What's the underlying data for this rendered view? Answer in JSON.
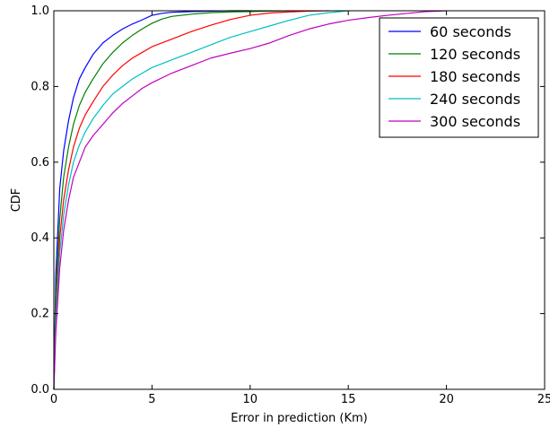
{
  "chart_data": {
    "type": "line",
    "title": "",
    "xlabel": "Error in prediction (Km)",
    "ylabel": "CDF",
    "xlim": [
      0,
      25
    ],
    "ylim": [
      0,
      1.0
    ],
    "xticks": [
      0,
      5,
      10,
      15,
      20,
      25
    ],
    "yticks": [
      0.0,
      0.2,
      0.4,
      0.6,
      0.8,
      1.0
    ],
    "xtick_labels": [
      "0",
      "5",
      "10",
      "15",
      "20",
      "25"
    ],
    "ytick_labels": [
      "0.0",
      "0.2",
      "0.4",
      "0.6",
      "0.8",
      "1.0"
    ],
    "grid": false,
    "legend_position": "top-right",
    "series": [
      {
        "name": "60 seconds",
        "color": "#0000ff",
        "x": [
          0,
          0.1,
          0.3,
          0.5,
          0.75,
          1.0,
          1.3,
          1.6,
          2.0,
          2.5,
          3.0,
          3.5,
          4.0,
          4.5,
          5.0,
          5.5,
          6.0,
          7.0,
          8.0,
          9.0,
          10.0
        ],
        "y": [
          0,
          0.3,
          0.53,
          0.63,
          0.71,
          0.77,
          0.82,
          0.85,
          0.885,
          0.915,
          0.935,
          0.952,
          0.965,
          0.976,
          0.988,
          0.993,
          0.996,
          0.998,
          0.999,
          1.0,
          1.0
        ]
      },
      {
        "name": "120 seconds",
        "color": "#008000",
        "x": [
          0,
          0.1,
          0.3,
          0.5,
          0.75,
          1.0,
          1.3,
          1.6,
          2.0,
          2.5,
          3.0,
          3.5,
          4.0,
          4.5,
          5.0,
          5.5,
          6.0,
          7.0,
          8.0,
          9.0,
          10.0,
          11.0,
          12.0
        ],
        "y": [
          0,
          0.25,
          0.45,
          0.56,
          0.64,
          0.7,
          0.75,
          0.785,
          0.82,
          0.86,
          0.89,
          0.915,
          0.935,
          0.952,
          0.967,
          0.978,
          0.985,
          0.991,
          0.995,
          0.997,
          0.998,
          0.999,
          1.0
        ]
      },
      {
        "name": "180 seconds",
        "color": "#ff0000",
        "x": [
          0,
          0.1,
          0.3,
          0.5,
          0.75,
          1.0,
          1.3,
          1.6,
          2.0,
          2.5,
          3.0,
          3.5,
          4.0,
          4.5,
          5.0,
          6.0,
          7.0,
          8.0,
          9.0,
          10.0,
          11.0,
          12.0,
          13.0,
          14.0
        ],
        "y": [
          0,
          0.2,
          0.4,
          0.5,
          0.58,
          0.64,
          0.69,
          0.725,
          0.76,
          0.8,
          0.83,
          0.855,
          0.875,
          0.89,
          0.905,
          0.925,
          0.945,
          0.962,
          0.977,
          0.988,
          0.994,
          0.997,
          0.999,
          1.0
        ]
      },
      {
        "name": "240 seconds",
        "color": "#00bfbf",
        "x": [
          0,
          0.1,
          0.3,
          0.5,
          0.75,
          1.0,
          1.3,
          1.6,
          2.0,
          2.5,
          3.0,
          3.5,
          4.0,
          4.5,
          5.0,
          6.0,
          7.0,
          8.0,
          9.0,
          10.0,
          11.0,
          12.0,
          13.0,
          14.0,
          15.0
        ],
        "y": [
          0,
          0.18,
          0.36,
          0.46,
          0.54,
          0.6,
          0.645,
          0.68,
          0.715,
          0.75,
          0.78,
          0.8,
          0.82,
          0.835,
          0.85,
          0.87,
          0.89,
          0.91,
          0.93,
          0.945,
          0.96,
          0.975,
          0.988,
          0.995,
          1.0
        ]
      },
      {
        "name": "300 seconds",
        "color": "#bf00bf",
        "x": [
          0,
          0.1,
          0.3,
          0.5,
          0.75,
          1.0,
          1.3,
          1.6,
          2.0,
          2.5,
          3.0,
          3.5,
          4.0,
          4.5,
          5.0,
          6.0,
          7.0,
          8.0,
          9.0,
          10.0,
          11.0,
          12.0,
          13.0,
          14.0,
          15.0,
          16.0,
          17.0,
          18.0,
          19.0,
          20.0
        ],
        "y": [
          0,
          0.15,
          0.32,
          0.42,
          0.5,
          0.56,
          0.6,
          0.64,
          0.67,
          0.7,
          0.73,
          0.755,
          0.775,
          0.795,
          0.81,
          0.835,
          0.855,
          0.875,
          0.888,
          0.9,
          0.915,
          0.935,
          0.952,
          0.965,
          0.975,
          0.982,
          0.988,
          0.993,
          0.998,
          1.0
        ]
      }
    ]
  }
}
